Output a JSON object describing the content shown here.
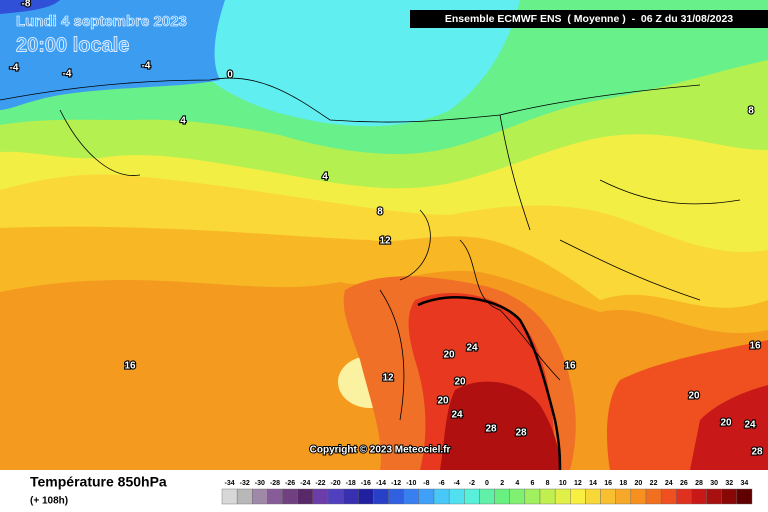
{
  "header": {
    "date": "Lundi 4 septembre 2023",
    "time": "20:00 locale",
    "model": "Ensemble ECMWF ENS  ( Moyenne )  -  06 Z du 31/08/2023",
    "copyright": "Copyright © 2023 Meteociel.fr"
  },
  "footer": {
    "variable": "Température 850hPa",
    "lead": "(+ 108h)"
  },
  "legend": {
    "labels": [
      -34,
      -32,
      -30,
      -28,
      -26,
      -24,
      -22,
      -20,
      -18,
      -16,
      -14,
      -12,
      -10,
      -8,
      -6,
      -4,
      -2,
      0,
      2,
      4,
      6,
      8,
      10,
      12,
      14,
      16,
      18,
      20,
      22,
      24,
      26,
      28,
      30,
      32,
      34
    ],
    "colors": [
      "#d8d8d8",
      "#b8b8b8",
      "#a088a8",
      "#885c98",
      "#704080",
      "#582868",
      "#6c3ca8",
      "#5040c0",
      "#3830b0",
      "#2020a0",
      "#2840c8",
      "#3060e0",
      "#3880f0",
      "#40a0f8",
      "#48c8f8",
      "#50e0f0",
      "#58f0d8",
      "#60f0a8",
      "#68f080",
      "#80f070",
      "#a0f060",
      "#c0f050",
      "#e0f048",
      "#f8f040",
      "#f8d838",
      "#f8c030",
      "#f8a828",
      "#f89020",
      "#f07020",
      "#f05020",
      "#e03020",
      "#c81818",
      "#a81010",
      "#880808",
      "#600000"
    ]
  },
  "contour_labels": [
    -8,
    -4,
    -4,
    -4,
    0,
    4,
    4,
    8,
    12,
    16,
    12,
    20,
    24,
    20,
    20,
    24,
    28,
    28,
    16,
    20,
    20,
    24,
    16,
    8,
    28
  ]
}
